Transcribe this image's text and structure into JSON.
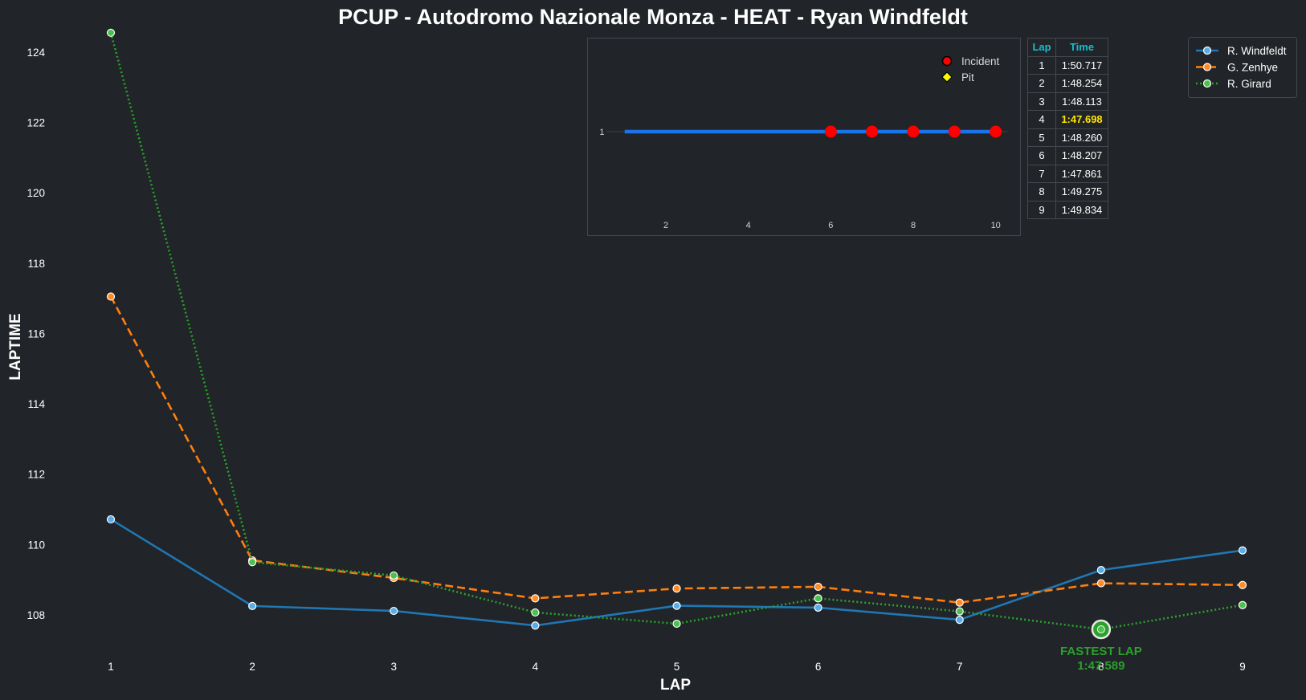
{
  "chart_data": [
    {
      "type": "line",
      "title": "PCUP - Autodromo Nazionale Monza - HEAT - Ryan Windfeldt",
      "xlabel": "LAP",
      "ylabel": "LAPTIME",
      "xlim": [
        0.6,
        9.3
      ],
      "ylim": [
        106.6,
        124.6
      ],
      "x": [
        1,
        2,
        3,
        4,
        5,
        6,
        7,
        8,
        9
      ],
      "xticks": [
        "1",
        "2",
        "3",
        "4",
        "5",
        "6",
        "7",
        "8",
        "9"
      ],
      "yticks": [
        "108",
        "110",
        "112",
        "114",
        "116",
        "118",
        "120",
        "122",
        "124"
      ],
      "ytick_values": [
        108,
        110,
        112,
        114,
        116,
        118,
        120,
        122,
        124
      ],
      "grid": false,
      "legend_position": "top-right",
      "series": [
        {
          "name": "R. Windfeldt",
          "color": "#1f77b4",
          "marker_fill": "#5aaee8",
          "line_style": "solid",
          "values": [
            110.717,
            108.254,
            108.113,
            107.698,
            108.26,
            108.207,
            107.861,
            109.275,
            109.834
          ]
        },
        {
          "name": "G. Zenhye",
          "color": "#ff7f0e",
          "marker_fill": "#ff8c28",
          "line_style": "dashed",
          "values": [
            117.05,
            109.55,
            109.05,
            108.47,
            108.75,
            108.8,
            108.35,
            108.9,
            108.85
          ]
        },
        {
          "name": "R. Girard",
          "color": "#2ca02c",
          "marker_fill": "#4cc24c",
          "line_style": "dotted",
          "values": [
            124.55,
            109.5,
            109.12,
            108.07,
            107.75,
            108.47,
            108.1,
            107.589,
            108.28
          ]
        }
      ],
      "annotation": {
        "label": "FASTEST LAP",
        "time": "1:47.589",
        "x": 8,
        "y": 107.589,
        "color": "#2ca02c"
      }
    },
    {
      "type": "line",
      "title": "",
      "x": [
        1,
        2,
        3,
        4,
        5,
        6,
        7,
        8,
        9,
        10
      ],
      "values": [
        1,
        1,
        1,
        1,
        1,
        1,
        1,
        1,
        1,
        1
      ],
      "xlim": [
        0.1,
        10.6
      ],
      "xticks": [
        "2",
        "4",
        "6",
        "8",
        "10"
      ],
      "xtick_values": [
        2,
        4,
        6,
        8,
        10
      ],
      "yticks": [
        "1"
      ],
      "line_color": "#1a73e8",
      "incidents": [
        6,
        7,
        8,
        9,
        10
      ],
      "incident_color": "#ff0000",
      "pits": [],
      "pit_color": "#ffff00",
      "legend": [
        "Incident",
        "Pit"
      ],
      "legend_position": "top-right"
    },
    {
      "type": "table",
      "headers": [
        "Lap",
        "Time"
      ],
      "rows": [
        [
          "1",
          "1:50.717"
        ],
        [
          "2",
          "1:48.254"
        ],
        [
          "3",
          "1:48.113"
        ],
        [
          "4",
          "1:47.698"
        ],
        [
          "5",
          "1:48.260"
        ],
        [
          "6",
          "1:48.207"
        ],
        [
          "7",
          "1:47.861"
        ],
        [
          "8",
          "1:49.275"
        ],
        [
          "9",
          "1:49.834"
        ]
      ],
      "best_row_index": 3,
      "header_color": "#17becf",
      "best_color": "#ffe600"
    }
  ]
}
